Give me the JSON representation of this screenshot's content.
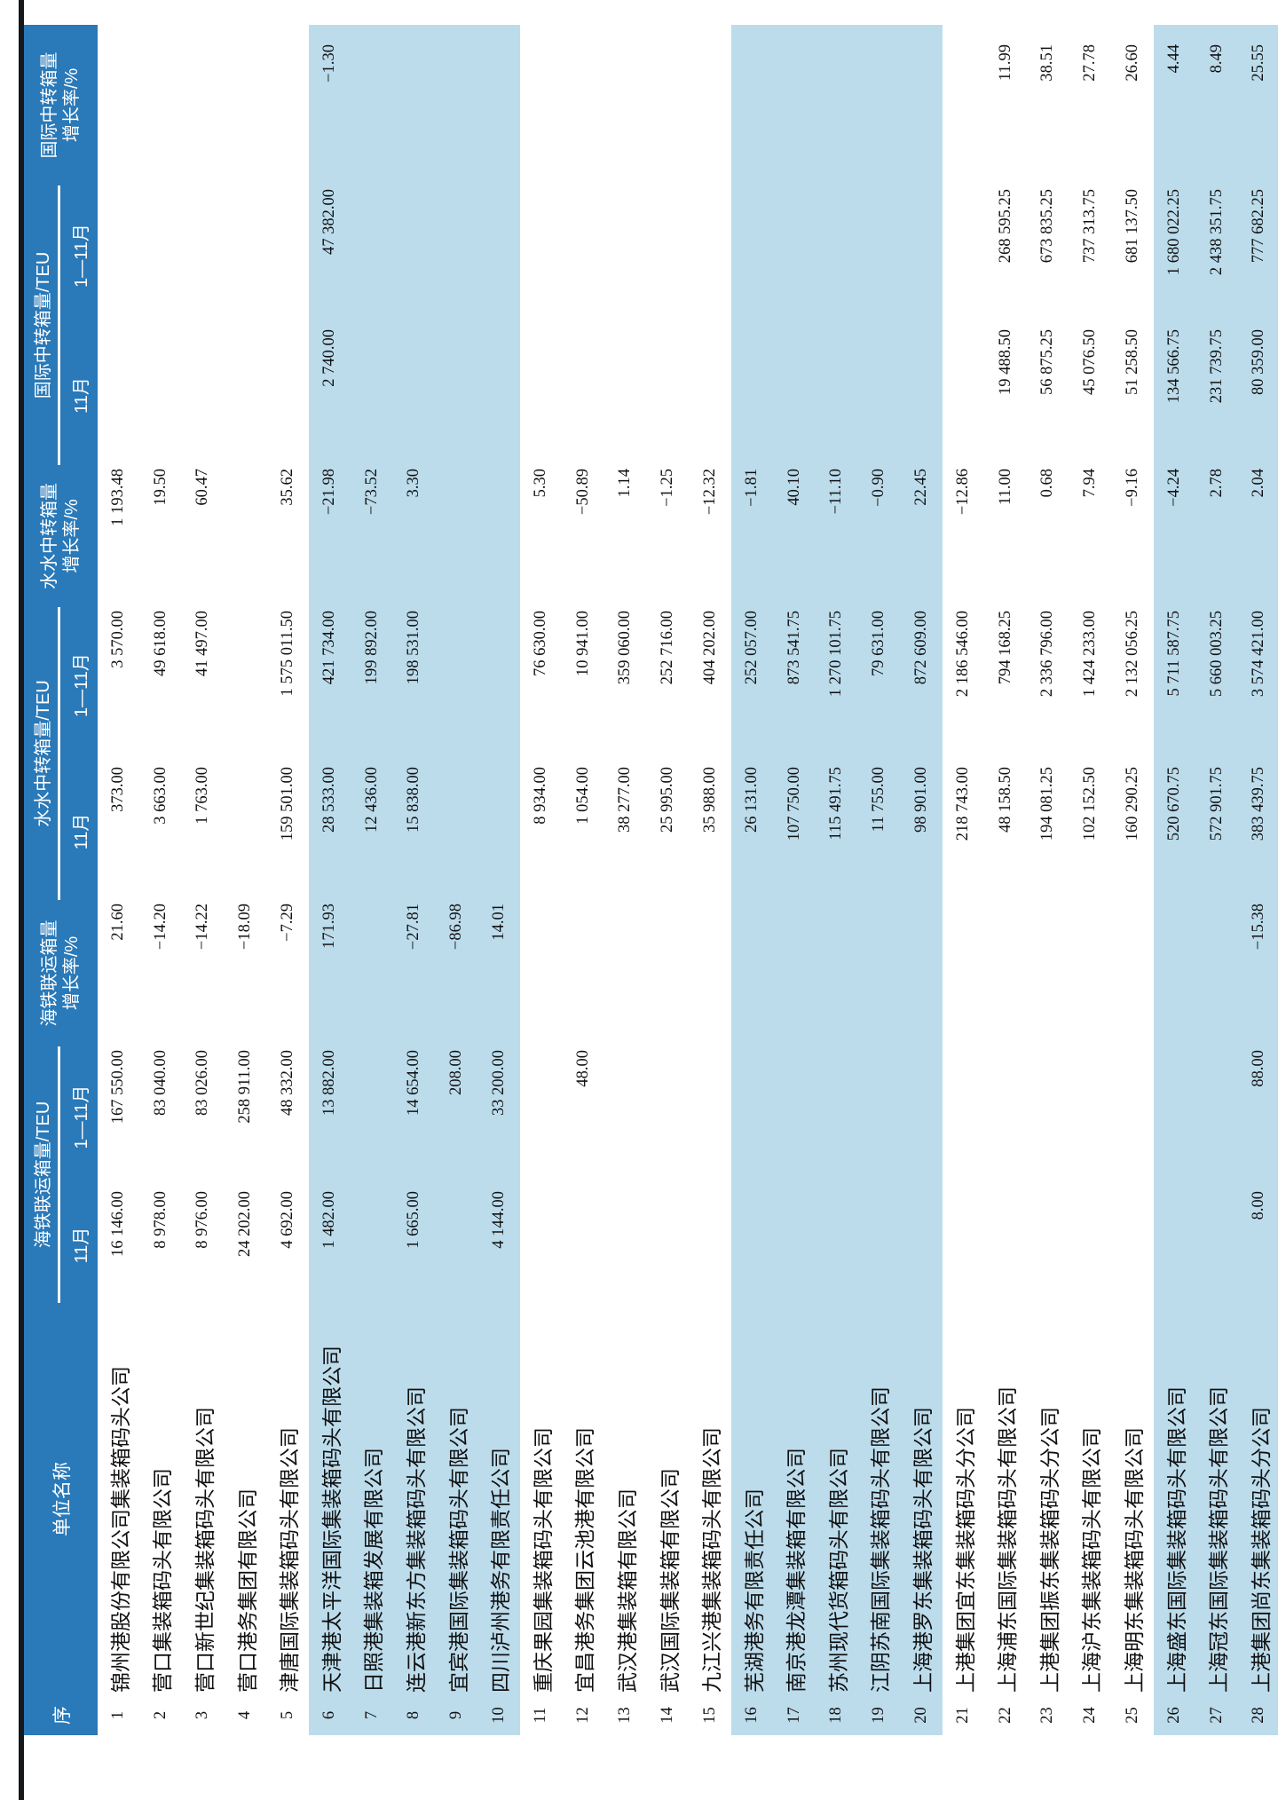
{
  "table": {
    "columns": {
      "index_label": "序",
      "unit_label": "单位名称",
      "groups": {
        "rail": {
          "title": "海铁联运箱量/TEU",
          "sub_nov": "11月",
          "sub_ytd": "1—11月",
          "growth_line1": "海铁联运箱量",
          "growth_line2": "增长率/%"
        },
        "water": {
          "title": "水水中转箱量/TEU",
          "sub_nov": "11月",
          "sub_ytd": "1—11月",
          "growth_line1": "水水中转箱量",
          "growth_line2": "增长率/%"
        },
        "intl": {
          "title": "国际中转箱量/TEU",
          "sub_nov": "11月",
          "sub_ytd": "1—11月",
          "growth_line1": "国际中转箱量",
          "growth_line2": "增长率/%"
        }
      }
    },
    "colors": {
      "header_blue": "#2a79b8",
      "band_blue": "#bcdcec",
      "rule_black": "#15181a"
    },
    "rows": [
      {
        "no": "1",
        "name": "锦州港股份有限公司集装箱码头公司",
        "rail_m": "16 146.00",
        "rail_y": "167 550.00",
        "rail_g": "21.60",
        "water_m": "373.00",
        "water_y": "3 570.00",
        "water_g": "1 193.48",
        "intl_m": "",
        "intl_y": "",
        "intl_g": ""
      },
      {
        "no": "2",
        "name": "营口集装箱码头有限公司",
        "rail_m": "8 978.00",
        "rail_y": "83 040.00",
        "rail_g": "−14.20",
        "water_m": "3 663.00",
        "water_y": "49 618.00",
        "water_g": "19.50",
        "intl_m": "",
        "intl_y": "",
        "intl_g": ""
      },
      {
        "no": "3",
        "name": "营口新世纪集装箱码头有限公司",
        "rail_m": "8 976.00",
        "rail_y": "83 026.00",
        "rail_g": "−14.22",
        "water_m": "1 763.00",
        "water_y": "41 497.00",
        "water_g": "60.47",
        "intl_m": "",
        "intl_y": "",
        "intl_g": ""
      },
      {
        "no": "4",
        "name": "营口港务集团有限公司",
        "rail_m": "24 202.00",
        "rail_y": "258 911.00",
        "rail_g": "−18.09",
        "water_m": "",
        "water_y": "",
        "water_g": "",
        "intl_m": "",
        "intl_y": "",
        "intl_g": ""
      },
      {
        "no": "5",
        "name": "津唐国际集装箱码头有限公司",
        "rail_m": "4 692.00",
        "rail_y": "48 332.00",
        "rail_g": "−7.29",
        "water_m": "159 501.00",
        "water_y": "1 575 011.50",
        "water_g": "35.62",
        "intl_m": "",
        "intl_y": "",
        "intl_g": ""
      },
      {
        "no": "6",
        "name": "天津港太平洋国际集装箱码头有限公司",
        "rail_m": "1 482.00",
        "rail_y": "13 882.00",
        "rail_g": "171.93",
        "water_m": "28 533.00",
        "water_y": "421 734.00",
        "water_g": "−21.98",
        "intl_m": "2 740.00",
        "intl_y": "47 382.00",
        "intl_g": "−1.30"
      },
      {
        "no": "7",
        "name": "日照港集装箱发展有限公司",
        "rail_m": "",
        "rail_y": "",
        "rail_g": "",
        "water_m": "12 436.00",
        "water_y": "199 892.00",
        "water_g": "−73.52",
        "intl_m": "",
        "intl_y": "",
        "intl_g": ""
      },
      {
        "no": "8",
        "name": "连云港新东方集装箱码头有限公司",
        "rail_m": "1 665.00",
        "rail_y": "14 654.00",
        "rail_g": "−27.81",
        "water_m": "15 838.00",
        "water_y": "198 531.00",
        "water_g": "3.30",
        "intl_m": "",
        "intl_y": "",
        "intl_g": ""
      },
      {
        "no": "9",
        "name": "宜宾港国际集装箱码头有限公司",
        "rail_m": "",
        "rail_y": "208.00",
        "rail_g": "−86.98",
        "water_m": "",
        "water_y": "",
        "water_g": "",
        "intl_m": "",
        "intl_y": "",
        "intl_g": ""
      },
      {
        "no": "10",
        "name": "四川泸州港务有限责任公司",
        "rail_m": "4 144.00",
        "rail_y": "33 200.00",
        "rail_g": "14.01",
        "water_m": "",
        "water_y": "",
        "water_g": "",
        "intl_m": "",
        "intl_y": "",
        "intl_g": ""
      },
      {
        "no": "11",
        "name": "重庆果园集装箱码头有限公司",
        "rail_m": "",
        "rail_y": "",
        "rail_g": "",
        "water_m": "8 934.00",
        "water_y": "76 630.00",
        "water_g": "5.30",
        "intl_m": "",
        "intl_y": "",
        "intl_g": ""
      },
      {
        "no": "12",
        "name": "宜昌港务集团云池港有限公司",
        "rail_m": "",
        "rail_y": "48.00",
        "rail_g": "",
        "water_m": "1 054.00",
        "water_y": "10 941.00",
        "water_g": "−50.89",
        "intl_m": "",
        "intl_y": "",
        "intl_g": ""
      },
      {
        "no": "13",
        "name": "武汉港集装箱有限公司",
        "rail_m": "",
        "rail_y": "",
        "rail_g": "",
        "water_m": "38 277.00",
        "water_y": "359 060.00",
        "water_g": "1.14",
        "intl_m": "",
        "intl_y": "",
        "intl_g": ""
      },
      {
        "no": "14",
        "name": "武汉国际集装箱有限公司",
        "rail_m": "",
        "rail_y": "",
        "rail_g": "",
        "water_m": "25 995.00",
        "water_y": "252 716.00",
        "water_g": "−1.25",
        "intl_m": "",
        "intl_y": "",
        "intl_g": ""
      },
      {
        "no": "15",
        "name": "九江兴港集装箱码头有限公司",
        "rail_m": "",
        "rail_y": "",
        "rail_g": "",
        "water_m": "35 988.00",
        "water_y": "404 202.00",
        "water_g": "−12.32",
        "intl_m": "",
        "intl_y": "",
        "intl_g": ""
      },
      {
        "no": "16",
        "name": "芜湖港务有限责任公司",
        "rail_m": "",
        "rail_y": "",
        "rail_g": "",
        "water_m": "26 131.00",
        "water_y": "252 057.00",
        "water_g": "−1.81",
        "intl_m": "",
        "intl_y": "",
        "intl_g": ""
      },
      {
        "no": "17",
        "name": "南京港龙潭集装箱有限公司",
        "rail_m": "",
        "rail_y": "",
        "rail_g": "",
        "water_m": "107 750.00",
        "water_y": "873 541.75",
        "water_g": "40.10",
        "intl_m": "",
        "intl_y": "",
        "intl_g": ""
      },
      {
        "no": "18",
        "name": "苏州现代货箱码头有限公司",
        "rail_m": "",
        "rail_y": "",
        "rail_g": "",
        "water_m": "115 491.75",
        "water_y": "1 270 101.75",
        "water_g": "−11.10",
        "intl_m": "",
        "intl_y": "",
        "intl_g": ""
      },
      {
        "no": "19",
        "name": "江阴苏南国际集装箱码头有限公司",
        "rail_m": "",
        "rail_y": "",
        "rail_g": "",
        "water_m": "11 755.00",
        "water_y": "79 631.00",
        "water_g": "−0.90",
        "intl_m": "",
        "intl_y": "",
        "intl_g": ""
      },
      {
        "no": "20",
        "name": "上海港罗东集装箱码头有限公司",
        "rail_m": "",
        "rail_y": "",
        "rail_g": "",
        "water_m": "98 901.00",
        "water_y": "872 609.00",
        "water_g": "22.45",
        "intl_m": "",
        "intl_y": "",
        "intl_g": ""
      },
      {
        "no": "21",
        "name": "上港集团宜东集装箱码头分公司",
        "rail_m": "",
        "rail_y": "",
        "rail_g": "",
        "water_m": "218 743.00",
        "water_y": "2 186 546.00",
        "water_g": "−12.86",
        "intl_m": "",
        "intl_y": "",
        "intl_g": ""
      },
      {
        "no": "22",
        "name": "上海浦东国际集装箱码头有限公司",
        "rail_m": "",
        "rail_y": "",
        "rail_g": "",
        "water_m": "48 158.50",
        "water_y": "794 168.25",
        "water_g": "11.00",
        "intl_m": "19 488.50",
        "intl_y": "268 595.25",
        "intl_g": "11.99"
      },
      {
        "no": "23",
        "name": "上港集团振东集装箱码头分公司",
        "rail_m": "",
        "rail_y": "",
        "rail_g": "",
        "water_m": "194 081.25",
        "water_y": "2 336 796.00",
        "water_g": "0.68",
        "intl_m": "56 875.25",
        "intl_y": "673 835.25",
        "intl_g": "38.51"
      },
      {
        "no": "24",
        "name": "上海沪东集装箱码头有限公司",
        "rail_m": "",
        "rail_y": "",
        "rail_g": "",
        "water_m": "102 152.50",
        "water_y": "1 424 233.00",
        "water_g": "7.94",
        "intl_m": "45 076.50",
        "intl_y": "737 313.75",
        "intl_g": "27.78"
      },
      {
        "no": "25",
        "name": "上海明东集装箱码头有限公司",
        "rail_m": "",
        "rail_y": "",
        "rail_g": "",
        "water_m": "160 290.25",
        "water_y": "2 132 056.25",
        "water_g": "−9.16",
        "intl_m": "51 258.50",
        "intl_y": "681 137.50",
        "intl_g": "26.60"
      },
      {
        "no": "26",
        "name": "上海盛东国际集装箱码头有限公司",
        "rail_m": "",
        "rail_y": "",
        "rail_g": "",
        "water_m": "520 670.75",
        "water_y": "5 711 587.75",
        "water_g": "−4.24",
        "intl_m": "134 566.75",
        "intl_y": "1 680 022.25",
        "intl_g": "4.44"
      },
      {
        "no": "27",
        "name": "上海冠东国际集装箱码头有限公司",
        "rail_m": "",
        "rail_y": "",
        "rail_g": "",
        "water_m": "572 901.75",
        "water_y": "5 660 003.25",
        "water_g": "2.78",
        "intl_m": "231 739.75",
        "intl_y": "2 438 351.75",
        "intl_g": "8.49"
      },
      {
        "no": "28",
        "name": "上港集团尚东集装箱码头分公司",
        "rail_m": "8.00",
        "rail_y": "88.00",
        "rail_g": "−15.38",
        "water_m": "383 439.75",
        "water_y": "3 574 421.00",
        "water_g": "2.04",
        "intl_m": "80 359.00",
        "intl_y": "777 682.25",
        "intl_g": "25.55"
      }
    ],
    "band_row_numbers": [
      6,
      7,
      8,
      9,
      10,
      16,
      17,
      18,
      19,
      20,
      26,
      27,
      28
    ]
  }
}
